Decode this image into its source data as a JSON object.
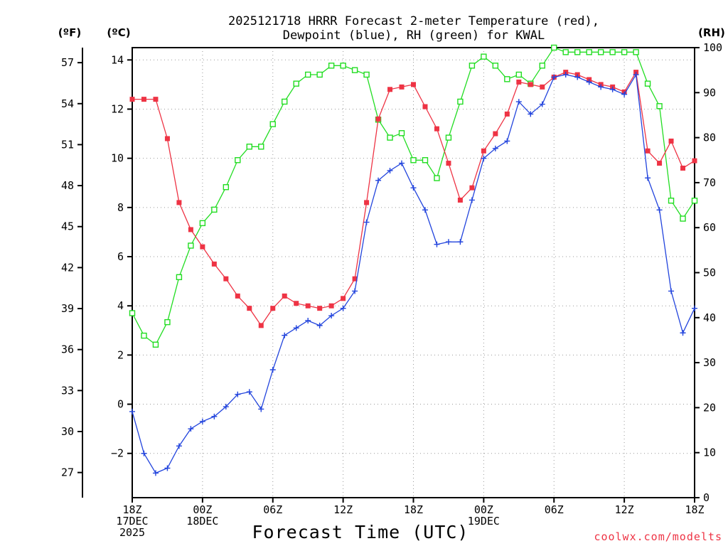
{
  "chart_data": {
    "type": "line",
    "title_line1": "2025121718 HRRR Forecast 2-meter Temperature (red),",
    "title_line2": "Dewpoint (blue), RH (green) for KWAL",
    "left_unit_outer": "(ºF)",
    "left_unit_inner": "(ºC)",
    "right_unit": "(RH)",
    "xlabel": "Forecast Time (UTC)",
    "credit": "coolwx.com/modelts",
    "colors": {
      "temperature": "#ee3344",
      "dewpoint": "#2244dd",
      "rh": "#22dd22",
      "grid": "#999999",
      "credit": "#ee3344"
    },
    "x_hours": [
      0,
      1,
      2,
      3,
      4,
      5,
      6,
      7,
      8,
      9,
      10,
      11,
      12,
      13,
      14,
      15,
      16,
      17,
      18,
      19,
      20,
      21,
      22,
      23,
      24,
      25,
      26,
      27,
      28,
      29,
      30,
      31,
      32,
      33,
      34,
      35,
      36,
      37,
      38,
      39,
      40,
      41,
      42,
      43,
      44,
      45,
      46,
      47,
      48
    ],
    "xlim": [
      0,
      48
    ],
    "x_ticks": [
      {
        "hour": 0,
        "lines": [
          "18Z",
          "17DEC",
          "2025"
        ]
      },
      {
        "hour": 6,
        "lines": [
          "00Z",
          "18DEC"
        ]
      },
      {
        "hour": 12,
        "lines": [
          "06Z"
        ]
      },
      {
        "hour": 18,
        "lines": [
          "12Z"
        ]
      },
      {
        "hour": 24,
        "lines": [
          "18Z"
        ]
      },
      {
        "hour": 30,
        "lines": [
          "00Z",
          "19DEC"
        ]
      },
      {
        "hour": 36,
        "lines": [
          "06Z"
        ]
      },
      {
        "hour": 42,
        "lines": [
          "12Z"
        ]
      },
      {
        "hour": 48,
        "lines": [
          "18Z"
        ]
      }
    ],
    "celsius_axis": {
      "ylim": [
        -3.8,
        14.5
      ],
      "ticks": [
        -2,
        0,
        2,
        4,
        6,
        8,
        10,
        12,
        14
      ],
      "tick_labels": [
        "−2",
        "0",
        "2",
        "4",
        "6",
        "8",
        "10",
        "12",
        "14"
      ]
    },
    "fahrenheit_axis": {
      "ticks": [
        27,
        30,
        33,
        36,
        39,
        42,
        45,
        48,
        51,
        54,
        57
      ],
      "tick_labels": [
        "27",
        "30",
        "33",
        "36",
        "39",
        "42",
        "45",
        "48",
        "51",
        "54",
        "57"
      ]
    },
    "rh_axis": {
      "ylim": [
        0,
        100
      ],
      "ticks": [
        0,
        10,
        20,
        30,
        40,
        50,
        60,
        70,
        80,
        90,
        100
      ],
      "tick_labels": [
        "0",
        "10",
        "20",
        "30",
        "40",
        "50",
        "60",
        "70",
        "80",
        "90",
        "100"
      ]
    },
    "series": [
      {
        "name": "Temperature (red)",
        "unit": "C",
        "marker": "filled-square",
        "values": [
          12.4,
          12.4,
          12.4,
          10.8,
          8.2,
          7.1,
          6.4,
          5.7,
          5.1,
          4.4,
          3.9,
          3.2,
          3.9,
          4.4,
          4.1,
          4.0,
          3.9,
          4.0,
          4.3,
          5.1,
          8.2,
          11.6,
          12.8,
          12.9,
          13.0,
          12.1,
          11.2,
          9.8,
          8.3,
          8.8,
          10.3,
          11.0,
          11.8,
          13.1,
          13.0,
          12.9,
          13.3,
          13.5,
          13.4,
          13.2,
          13.0,
          12.9,
          12.7,
          13.5,
          10.3,
          9.8,
          10.7,
          9.6,
          9.9
        ]
      },
      {
        "name": "Dewpoint (blue)",
        "unit": "C",
        "marker": "plus",
        "values": [
          -0.3,
          -2.0,
          -2.8,
          -2.6,
          -1.7,
          -1.0,
          -0.7,
          -0.5,
          -0.1,
          0.4,
          0.5,
          -0.2,
          1.4,
          2.8,
          3.1,
          3.4,
          3.2,
          3.6,
          3.9,
          4.6,
          7.4,
          9.1,
          9.5,
          9.8,
          8.8,
          7.9,
          6.5,
          6.6,
          6.6,
          8.3,
          10.0,
          10.4,
          10.7,
          12.3,
          11.8,
          12.2,
          13.3,
          13.4,
          13.3,
          13.1,
          12.9,
          12.8,
          12.6,
          13.4,
          9.2,
          7.9,
          4.6,
          2.9,
          3.9
        ]
      },
      {
        "name": "RH (green)",
        "unit": "%",
        "marker": "open-square",
        "values": [
          41,
          36,
          34,
          39,
          49,
          56,
          61,
          64,
          69,
          75,
          78,
          78,
          83,
          88,
          92,
          94,
          94,
          96,
          96,
          95,
          94,
          84,
          80,
          81,
          75,
          75,
          71,
          80,
          88,
          96,
          98,
          96,
          93,
          94,
          92,
          96,
          100,
          99,
          99,
          99,
          99,
          99,
          99,
          99,
          92,
          87,
          66,
          62,
          66
        ]
      }
    ]
  }
}
